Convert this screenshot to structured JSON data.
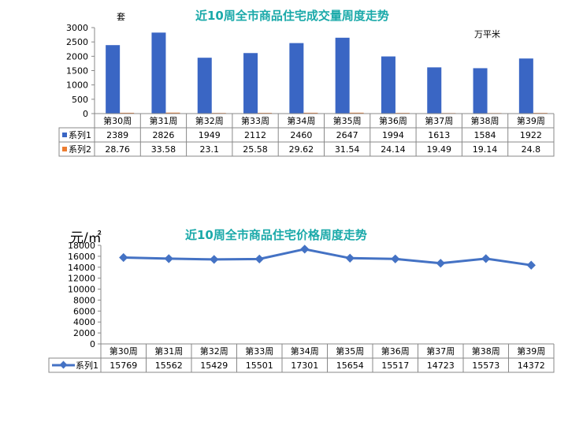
{
  "chart_data": [
    {
      "type": "bar",
      "title": "近10周全市商品住宅成交量周度走势",
      "unit_left": "套",
      "unit_right": "万平米",
      "categories": [
        "第30周",
        "第31周",
        "第32周",
        "第33周",
        "第34周",
        "第35周",
        "第36周",
        "第37周",
        "第38周",
        "第39周"
      ],
      "series": [
        {
          "name": "系列1",
          "color": "#3a66c4",
          "values": [
            2389,
            2826,
            1949,
            2112,
            2460,
            2647,
            1994,
            1613,
            1584,
            1922
          ],
          "labels": [
            "2389",
            "2826",
            "1949",
            "2112",
            "2460",
            "2647",
            "1994",
            "1613",
            "1584",
            "1922"
          ]
        },
        {
          "name": "系列2",
          "color": "#ed7d31",
          "values": [
            28.76,
            33.58,
            23.1,
            25.58,
            29.62,
            31.54,
            24.14,
            19.49,
            19.14,
            24.8
          ],
          "labels": [
            "28.76",
            "33.58",
            "23.1",
            "25.58",
            "29.62",
            "31.54",
            "24.14",
            "19.49",
            "19.14",
            "24.8"
          ]
        }
      ],
      "ylim": [
        0,
        3000
      ],
      "yticks": [
        "3000",
        "2500",
        "2000",
        "1500",
        "1000",
        "500",
        "0"
      ],
      "data_table": true,
      "grid": false
    },
    {
      "type": "line",
      "title": "近10周全市商品住宅价格周度走势",
      "unit_left": "元/㎡",
      "categories": [
        "第30周",
        "第31周",
        "第32周",
        "第33周",
        "第34周",
        "第35周",
        "第36周",
        "第37周",
        "第38周",
        "第39周"
      ],
      "series": [
        {
          "name": "系列1",
          "color": "#4472c4",
          "values": [
            15769,
            15562,
            15429,
            15501,
            17301,
            15654,
            15517,
            14723,
            15573,
            14372
          ],
          "labels": [
            "15769",
            "15562",
            "15429",
            "15501",
            "17301",
            "15654",
            "15517",
            "14723",
            "15573",
            "14372"
          ]
        }
      ],
      "ylim": [
        0,
        18000
      ],
      "yticks": [
        "18000",
        "16000",
        "14000",
        "12000",
        "10000",
        "8000",
        "6000",
        "4000",
        "2000",
        "0"
      ],
      "data_table": true,
      "grid": false
    }
  ]
}
